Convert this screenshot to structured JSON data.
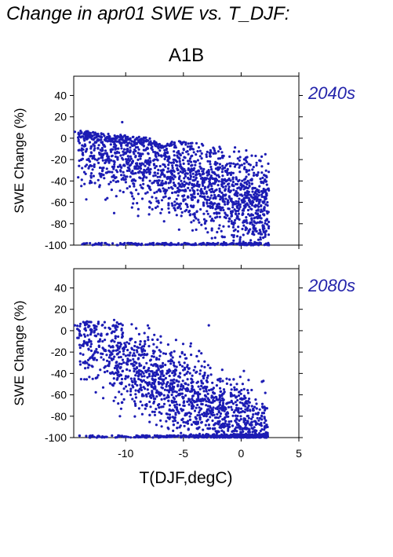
{
  "figure": {
    "title": "Change in apr01 SWE vs. T_DJF:",
    "scenario": "A1B",
    "xlabel": "T(DJF,degC)"
  },
  "colors": {
    "points": "#1c1cb4",
    "period_label": "#2222aa"
  },
  "chart_data": [
    {
      "type": "scatter",
      "period_label": "2040s",
      "ylabel": "SWE Change (%)",
      "xlim": [
        -14.5,
        5
      ],
      "ylim": [
        -100,
        58
      ],
      "yticks": [
        "40",
        "20",
        "0",
        "-20",
        "-40",
        "-60",
        "-80",
        "-100"
      ],
      "x_range_observed": [
        -14.5,
        2.5
      ],
      "y_range_observed": [
        -100,
        15
      ],
      "n_points_approx": 2000,
      "points": [
        [
          -14.4,
          6
        ],
        [
          -13.2,
          5
        ],
        [
          -12.1,
          4
        ],
        [
          -11.5,
          0
        ],
        [
          -10.3,
          15
        ],
        [
          -9.8,
          -5
        ],
        [
          -8.2,
          -10
        ],
        [
          -7.5,
          -20
        ],
        [
          -6.3,
          -25
        ],
        [
          -5.2,
          -40
        ],
        [
          -4.1,
          -45
        ],
        [
          -3.0,
          -50
        ],
        [
          -2.2,
          -55
        ],
        [
          -1.1,
          -60
        ],
        [
          0.1,
          -60
        ],
        [
          0.6,
          -40
        ],
        [
          0.9,
          -75
        ],
        [
          1.5,
          -95
        ],
        [
          2.4,
          -100
        ],
        [
          -9.0,
          -100
        ],
        [
          -11.0,
          -70
        ],
        [
          -12.0,
          -30
        ]
      ]
    },
    {
      "type": "scatter",
      "period_label": "2080s",
      "ylabel": "SWE Change (%)",
      "xlim": [
        -14.5,
        5
      ],
      "ylim": [
        -100,
        58
      ],
      "yticks": [
        "40",
        "20",
        "0",
        "-20",
        "-40",
        "-60",
        "-80",
        "-100"
      ],
      "xticks": [
        "-10",
        "-5",
        "0",
        "5"
      ],
      "x_range_observed": [
        -14.5,
        2.5
      ],
      "y_range_observed": [
        -100,
        10
      ],
      "n_points_approx": 2000,
      "points": [
        [
          -14.4,
          5
        ],
        [
          -13.0,
          8
        ],
        [
          -12.0,
          -10
        ],
        [
          -11.0,
          10
        ],
        [
          -10.0,
          -15
        ],
        [
          -9.0,
          -20
        ],
        [
          -8.0,
          -35
        ],
        [
          -7.0,
          -45
        ],
        [
          -6.0,
          -60
        ],
        [
          -5.0,
          -70
        ],
        [
          -4.0,
          -75
        ],
        [
          -3.0,
          -80
        ],
        [
          -2.8,
          5
        ],
        [
          -2.0,
          -85
        ],
        [
          -1.0,
          -90
        ],
        [
          0.0,
          -95
        ],
        [
          1.0,
          -98
        ],
        [
          2.2,
          -100
        ],
        [
          -12.5,
          -100
        ],
        [
          -10.5,
          -80
        ]
      ]
    }
  ]
}
